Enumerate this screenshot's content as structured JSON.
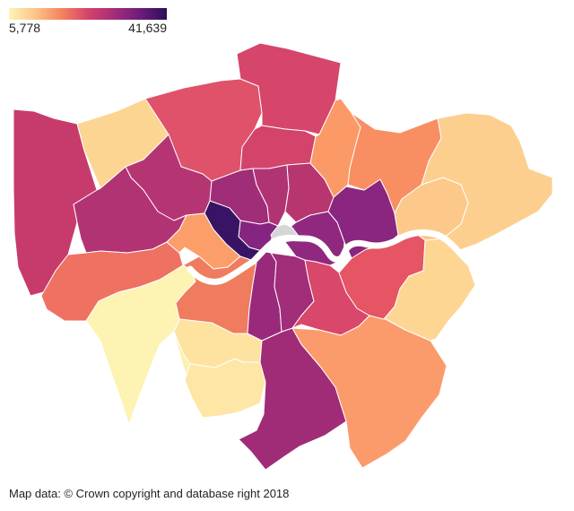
{
  "legend": {
    "min_label": "5,778",
    "max_label": "41,639",
    "min_value": 5778,
    "max_value": 41639,
    "gradient_colors": [
      "#fcf5b6",
      "#fdc487",
      "#f4845f",
      "#d4436b",
      "#a42d79",
      "#6b1c7c",
      "#2b0f57"
    ]
  },
  "credit": "Map data: © Crown copyright and database right 2018",
  "colors": {
    "background": "#ffffff",
    "river": "#ffffff",
    "no_data": "#d6d6d6"
  },
  "boroughs": [
    {
      "id": "hillingdon",
      "color": "#c73b6c"
    },
    {
      "id": "harrow",
      "color": "#fcd592"
    },
    {
      "id": "barnet",
      "color": "#e0516a"
    },
    {
      "id": "enfield",
      "color": "#d5466a"
    },
    {
      "id": "haringey",
      "color": "#d3436a"
    },
    {
      "id": "brent",
      "color": "#b53572"
    },
    {
      "id": "ealing",
      "color": "#b23374"
    },
    {
      "id": "hounslow",
      "color": "#ef7162"
    },
    {
      "id": "richmond",
      "color": "#fdf3b2"
    },
    {
      "id": "kingston",
      "color": "#fdf0b0"
    },
    {
      "id": "camden",
      "color": "#a02d78"
    },
    {
      "id": "islington",
      "color": "#b03474"
    },
    {
      "id": "hackney",
      "color": "#b83670"
    },
    {
      "id": "westminster",
      "color": "#852581"
    },
    {
      "id": "kensington-chelsea",
      "color": "#3a1464"
    },
    {
      "id": "hammersmith-fulham",
      "color": "#fc9e6a"
    },
    {
      "id": "wandsworth",
      "color": "#ef7c5e"
    },
    {
      "id": "merton",
      "color": "#fee3a0"
    },
    {
      "id": "sutton",
      "color": "#fde6a6"
    },
    {
      "id": "croydon",
      "color": "#a02c78"
    },
    {
      "id": "lambeth",
      "color": "#992a7b"
    },
    {
      "id": "southwark",
      "color": "#a22d78"
    },
    {
      "id": "lewisham",
      "color": "#d9476a"
    },
    {
      "id": "bromley",
      "color": "#fb9b6b"
    },
    {
      "id": "greenwich",
      "color": "#e65563"
    },
    {
      "id": "bexley",
      "color": "#fed694"
    },
    {
      "id": "tower-hamlets",
      "color": "#902880"
    },
    {
      "id": "newham",
      "color": "#8a267f"
    },
    {
      "id": "waltham-forest",
      "color": "#fb9a67"
    },
    {
      "id": "redbridge",
      "color": "#f98e62"
    },
    {
      "id": "barking-dagenham",
      "color": "#fdc98b"
    },
    {
      "id": "havering",
      "color": "#fdcf8f"
    },
    {
      "id": "city-of-london",
      "color": "#d6d6d6"
    }
  ]
}
